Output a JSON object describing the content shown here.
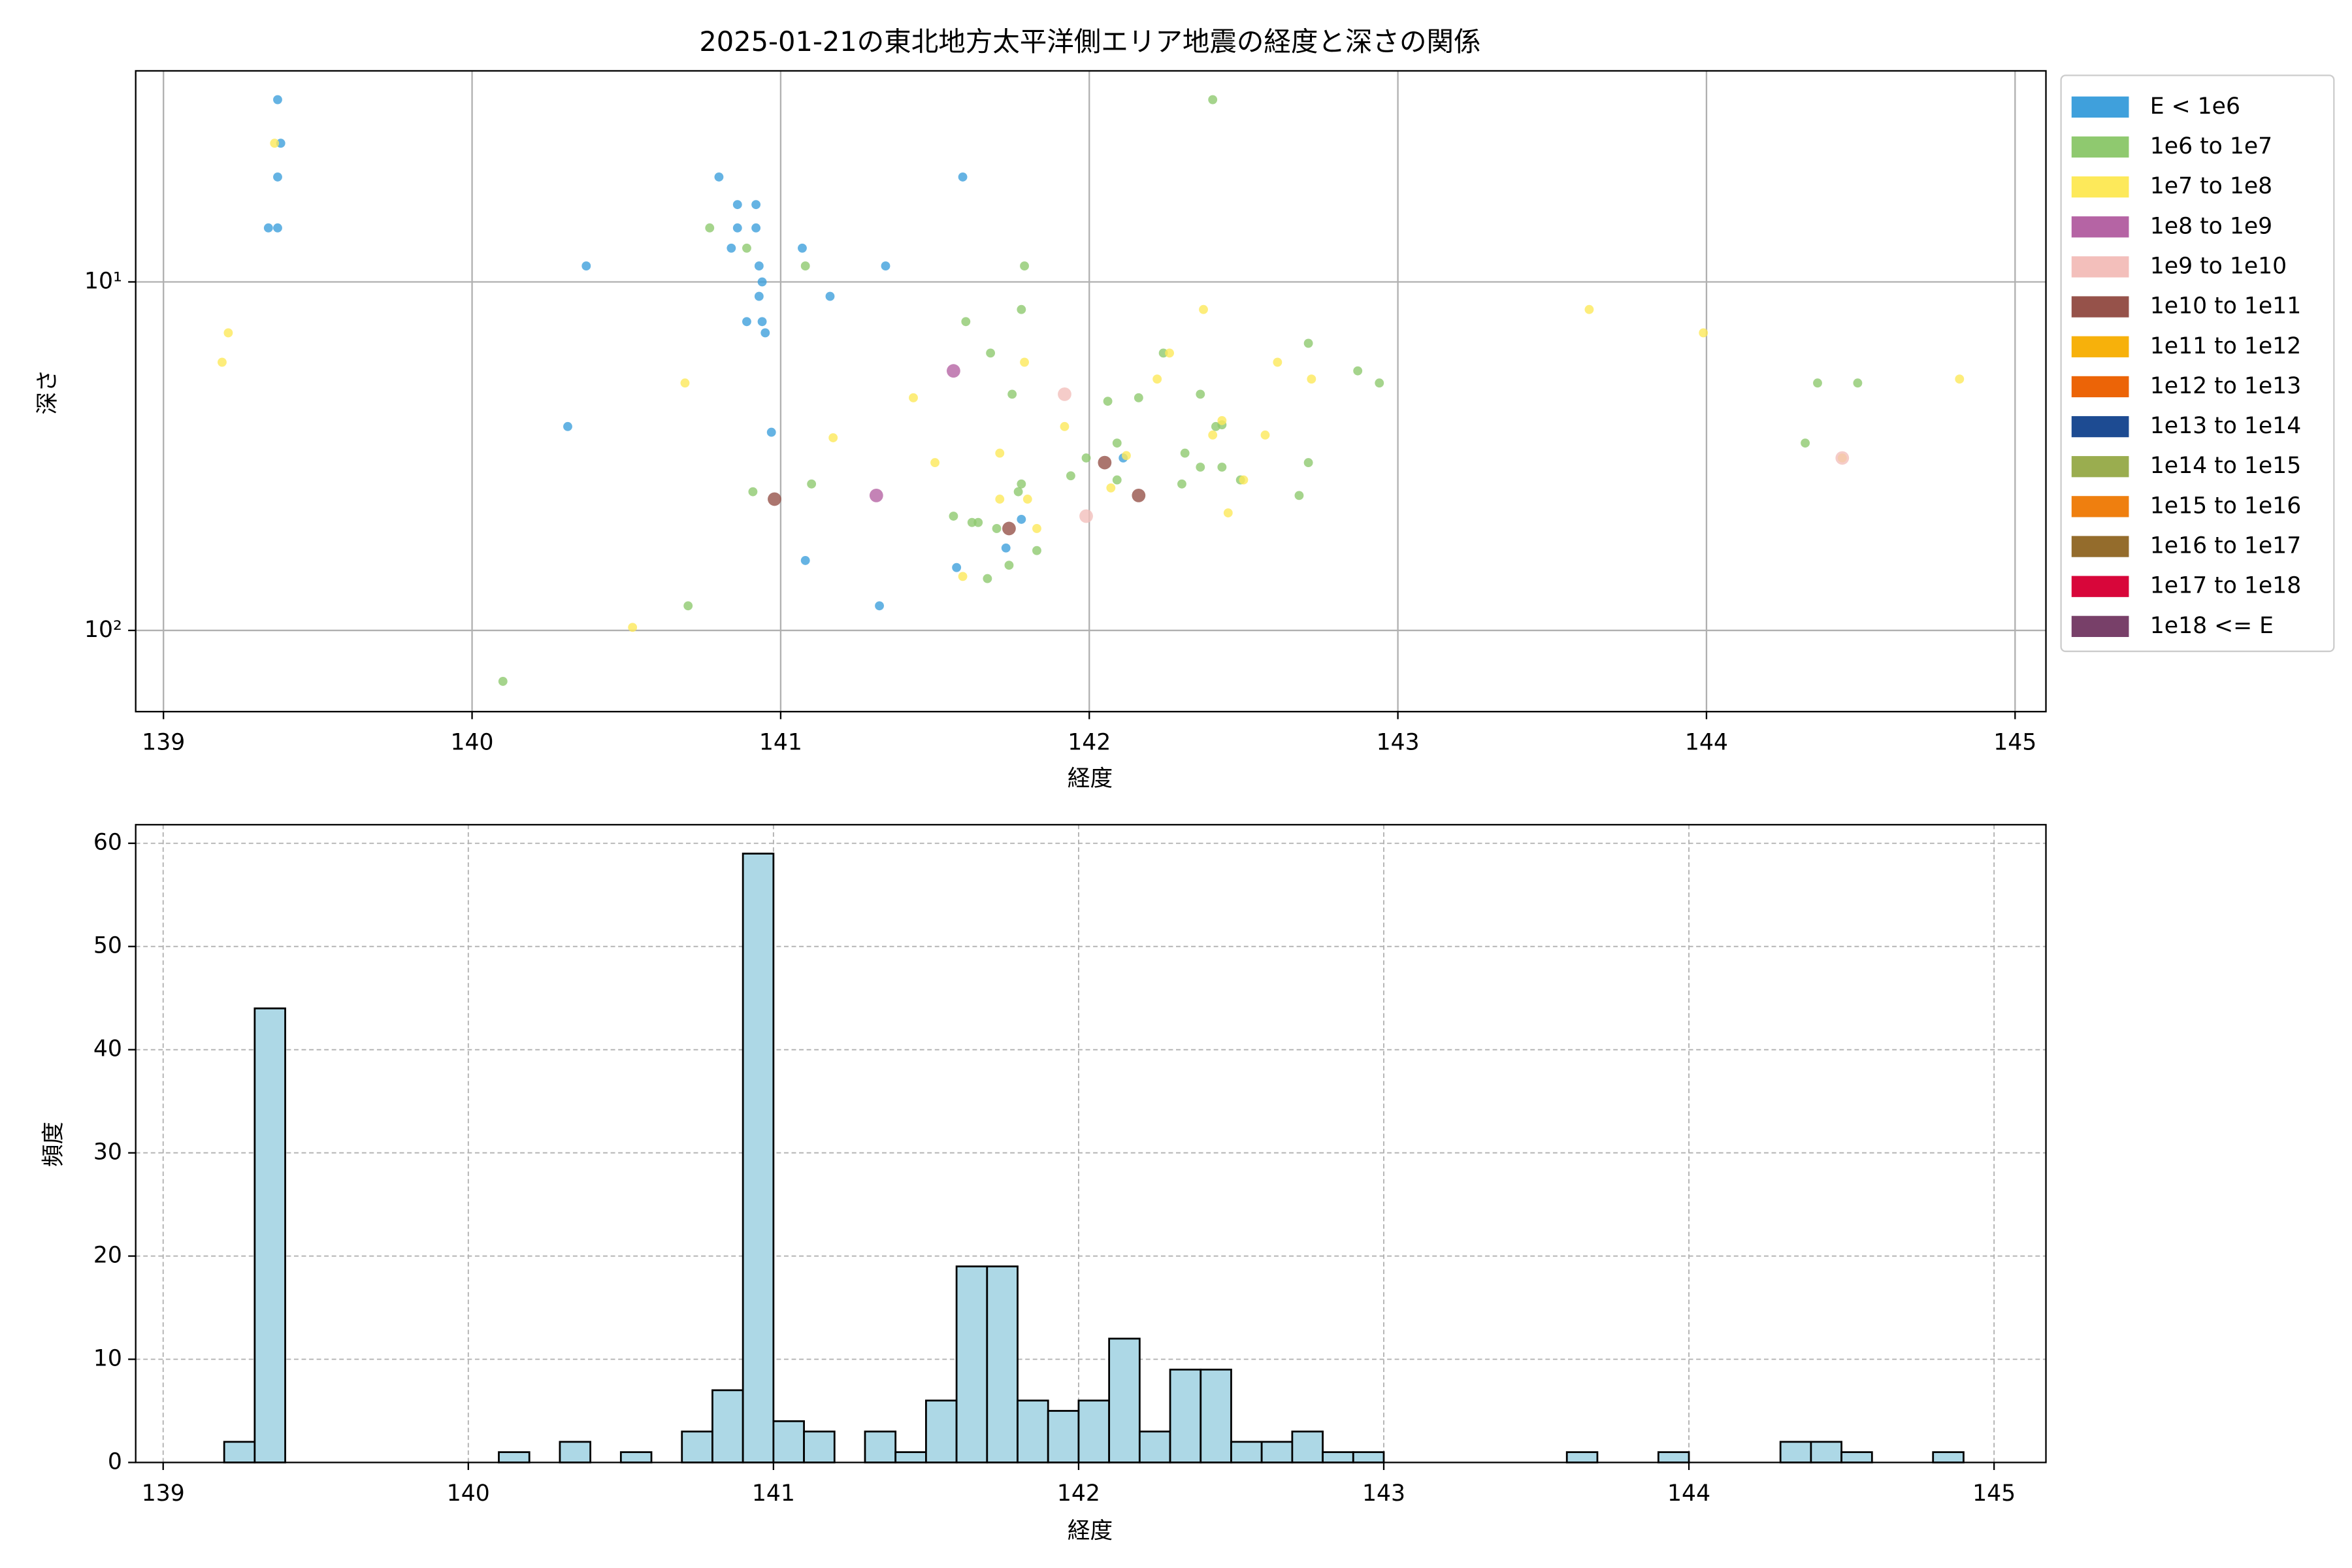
{
  "chart_data": [
    {
      "type": "scatter",
      "title": "2025-01-21の東北地方太平洋側エリア地震の経度と深さの関係",
      "x_label": "経度",
      "y_label": "深さ",
      "xlim": [
        138.91,
        145.1
      ],
      "xticks": [
        139,
        140,
        141,
        142,
        143,
        144,
        145
      ],
      "ylim": [
        2.48,
        171
      ],
      "yscale": "log",
      "y_inverted": true,
      "yticks": [
        {
          "value": 10,
          "label": "10¹"
        },
        {
          "value": 100,
          "label": "10²"
        }
      ],
      "grid": true,
      "legend": "outside right",
      "series": [
        {
          "name": "E < 1e6",
          "color": "#3fa0dc",
          "x": [
            139.37,
            139.38,
            139.37,
            139.34,
            139.37,
            140.37,
            140.8,
            140.86,
            140.92,
            140.86,
            140.92,
            140.84,
            140.93,
            140.94,
            140.93,
            140.89,
            140.94,
            140.95,
            141.07,
            141.16,
            141.34,
            141.59,
            140.31,
            140.97,
            141.08,
            141.32,
            141.57,
            141.73,
            141.78,
            142.11
          ],
          "values": [
            3,
            4,
            5,
            7,
            7,
            9,
            5,
            6,
            6,
            7,
            7,
            8,
            9,
            10,
            11,
            13,
            13,
            14,
            8,
            11,
            9,
            5,
            26,
            27,
            63,
            85,
            66,
            58,
            48,
            32
          ]
        },
        {
          "name": "1e6 to 1e7",
          "color": "#8fc96f",
          "x": [
            142.4,
            140.77,
            140.89,
            141.08,
            141.79,
            141.6,
            141.78,
            141.68,
            141.75,
            142.71,
            142.87,
            142.94,
            142.24,
            142.06,
            142.16,
            142.36,
            142.41,
            142.43,
            142.09,
            142.31,
            141.99,
            141.94,
            142.3,
            141.78,
            141.77,
            142.36,
            142.43,
            142.49,
            142.71,
            142.68,
            141.1,
            140.91,
            141.56,
            141.62,
            141.7,
            141.83,
            141.74,
            141.67,
            140.7,
            140.1,
            144.36,
            144.49,
            144.32,
            142.09,
            141.64
          ],
          "values": [
            3,
            7,
            8,
            9,
            9,
            13,
            12,
            16,
            21,
            15,
            18,
            19.5,
            16,
            22,
            21.5,
            21,
            26,
            25.7,
            29,
            31,
            32,
            36,
            38,
            38,
            40,
            34,
            34,
            37,
            33,
            41,
            38,
            40,
            47,
            49,
            51,
            59,
            65,
            71,
            85,
            140,
            19.5,
            19.5,
            29,
            37,
            49
          ]
        },
        {
          "name": "1e7 to 1e8",
          "color": "#fde95a",
          "x": [
            139.21,
            139.19,
            140.69,
            140.52,
            141.17,
            141.43,
            141.5,
            141.71,
            141.79,
            141.92,
            142.26,
            142.22,
            142.37,
            142.61,
            142.72,
            142.57,
            142.4,
            142.43,
            142.5,
            142.45,
            141.83,
            141.71,
            141.8,
            142.07,
            142.12,
            141.59,
            143.62,
            143.99,
            144.82,
            144.44,
            139.36
          ],
          "values": [
            14,
            17,
            19.5,
            98,
            28,
            21.5,
            33,
            31,
            17,
            26,
            16,
            19,
            12,
            17,
            19,
            27.5,
            27.5,
            25,
            37,
            46,
            51,
            42,
            42,
            39,
            31.5,
            70,
            12,
            14,
            19,
            32,
            4
          ]
        },
        {
          "name": "1e8 to 1e9",
          "color": "#b564a4",
          "x": [
            141.56,
            141.31
          ],
          "values": [
            18,
            41
          ]
        },
        {
          "name": "1e9 to 1e10",
          "color": "#f3bfbb",
          "x": [
            141.92,
            141.99,
            144.44
          ],
          "values": [
            21,
            47,
            32
          ]
        },
        {
          "name": "1e10 to 1e11",
          "color": "#96524a",
          "x": [
            140.98,
            142.05,
            142.16,
            141.74
          ],
          "values": [
            42,
            33,
            41,
            51
          ]
        },
        {
          "name": "1e11 to 1e12",
          "color": "#f7b10b",
          "x": [],
          "values": []
        },
        {
          "name": "1e12 to 1e13",
          "color": "#ec6407",
          "x": [],
          "values": []
        },
        {
          "name": "1e13 to 1e14",
          "color": "#1d4b92",
          "x": [],
          "values": []
        },
        {
          "name": "1e14 to 1e15",
          "color": "#9aad4f",
          "x": [],
          "values": []
        },
        {
          "name": "1e15 to 1e16",
          "color": "#ef7f0f",
          "x": [],
          "values": []
        },
        {
          "name": "1e16 to 1e17",
          "color": "#946c2c",
          "x": [],
          "values": []
        },
        {
          "name": "1e17 to 1e18",
          "color": "#d8063a",
          "x": [],
          "values": []
        },
        {
          "name": "1e18 <= E",
          "color": "#784069",
          "x": [],
          "values": []
        }
      ]
    },
    {
      "type": "histogram",
      "x_label": "経度",
      "y_label": "頻度",
      "color": "#add8e6",
      "xlim": [
        138.91,
        145.17
      ],
      "xticks": [
        139,
        140,
        141,
        142,
        143,
        144,
        145
      ],
      "ylim": [
        0,
        61.8
      ],
      "yticks": [
        0,
        10,
        20,
        30,
        40,
        50,
        60
      ],
      "grid": true,
      "bins": [
        139.2,
        139.3,
        139.4,
        139.5,
        139.6,
        139.7,
        139.8,
        139.9,
        140.0,
        140.1,
        140.2,
        140.3,
        140.4,
        140.5,
        140.6,
        140.7,
        140.8,
        140.9,
        141.0,
        141.1,
        141.2,
        141.3,
        141.4,
        141.5,
        141.6,
        141.7,
        141.8,
        141.9,
        142.0,
        142.1,
        142.2,
        142.3,
        142.4,
        142.5,
        142.6,
        142.7,
        142.8,
        142.9,
        143.0,
        143.1,
        143.2,
        143.3,
        143.4,
        143.5,
        143.6,
        143.7,
        143.8,
        143.9,
        144.0,
        144.1,
        144.2,
        144.3,
        144.4,
        144.5,
        144.6,
        144.7,
        144.8,
        144.9
      ],
      "values": [
        2,
        44,
        0,
        0,
        0,
        0,
        0,
        0,
        0,
        1,
        0,
        2,
        0,
        1,
        0,
        3,
        7,
        59,
        4,
        3,
        0,
        3,
        1,
        6,
        19,
        19,
        6,
        5,
        6,
        12,
        3,
        9,
        9,
        2,
        2,
        3,
        1,
        1,
        0,
        0,
        0,
        0,
        0,
        0,
        1,
        0,
        0,
        1,
        0,
        0,
        0,
        2,
        2,
        1,
        0,
        0,
        1
      ]
    }
  ]
}
